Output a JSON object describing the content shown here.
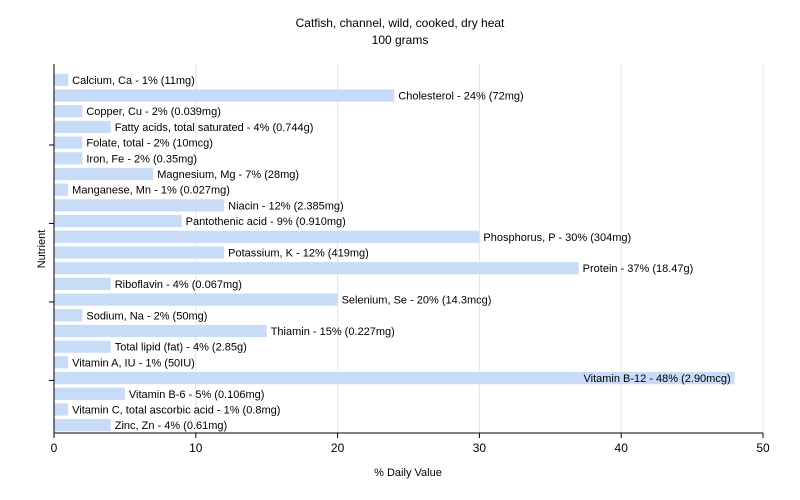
{
  "chart_data": {
    "type": "bar",
    "orientation": "horizontal",
    "title": "Catfish, channel, wild, cooked, dry heat",
    "subtitle": "100 grams",
    "xlabel": "% Daily Value",
    "ylabel": "Nutrient",
    "xlim": [
      0,
      50
    ],
    "xticks": [
      0,
      10,
      20,
      30,
      40,
      50
    ],
    "grid": true,
    "bar_color": "#c8dcf8",
    "bars": [
      {
        "label": "Calcium, Ca - 1% (11mg)",
        "value": 1
      },
      {
        "label": "Cholesterol - 24% (72mg)",
        "value": 24
      },
      {
        "label": "Copper, Cu - 2% (0.039mg)",
        "value": 2
      },
      {
        "label": "Fatty acids, total saturated - 4% (0.744g)",
        "value": 4
      },
      {
        "label": "Folate, total - 2% (10mcg)",
        "value": 2
      },
      {
        "label": "Iron, Fe - 2% (0.35mg)",
        "value": 2
      },
      {
        "label": "Magnesium, Mg - 7% (28mg)",
        "value": 7
      },
      {
        "label": "Manganese, Mn - 1% (0.027mg)",
        "value": 1
      },
      {
        "label": "Niacin - 12% (2.385mg)",
        "value": 12
      },
      {
        "label": "Pantothenic acid - 9% (0.910mg)",
        "value": 9
      },
      {
        "label": "Phosphorus, P - 30% (304mg)",
        "value": 30
      },
      {
        "label": "Potassium, K - 12% (419mg)",
        "value": 12
      },
      {
        "label": "Protein - 37% (18.47g)",
        "value": 37
      },
      {
        "label": "Riboflavin - 4% (0.067mg)",
        "value": 4
      },
      {
        "label": "Selenium, Se - 20% (14.3mcg)",
        "value": 20
      },
      {
        "label": "Sodium, Na - 2% (50mg)",
        "value": 2
      },
      {
        "label": "Thiamin - 15% (0.227mg)",
        "value": 15
      },
      {
        "label": "Total lipid (fat) - 4% (2.85g)",
        "value": 4
      },
      {
        "label": "Vitamin A, IU - 1% (50IU)",
        "value": 1
      },
      {
        "label": "Vitamin B-12 - 48% (2.90mcg)",
        "value": 48
      },
      {
        "label": "Vitamin B-6 - 5% (0.106mg)",
        "value": 5
      },
      {
        "label": "Vitamin C, total ascorbic acid - 1% (0.8mg)",
        "value": 1
      },
      {
        "label": "Zinc, Zn - 4% (0.61mg)",
        "value": 4
      }
    ]
  }
}
